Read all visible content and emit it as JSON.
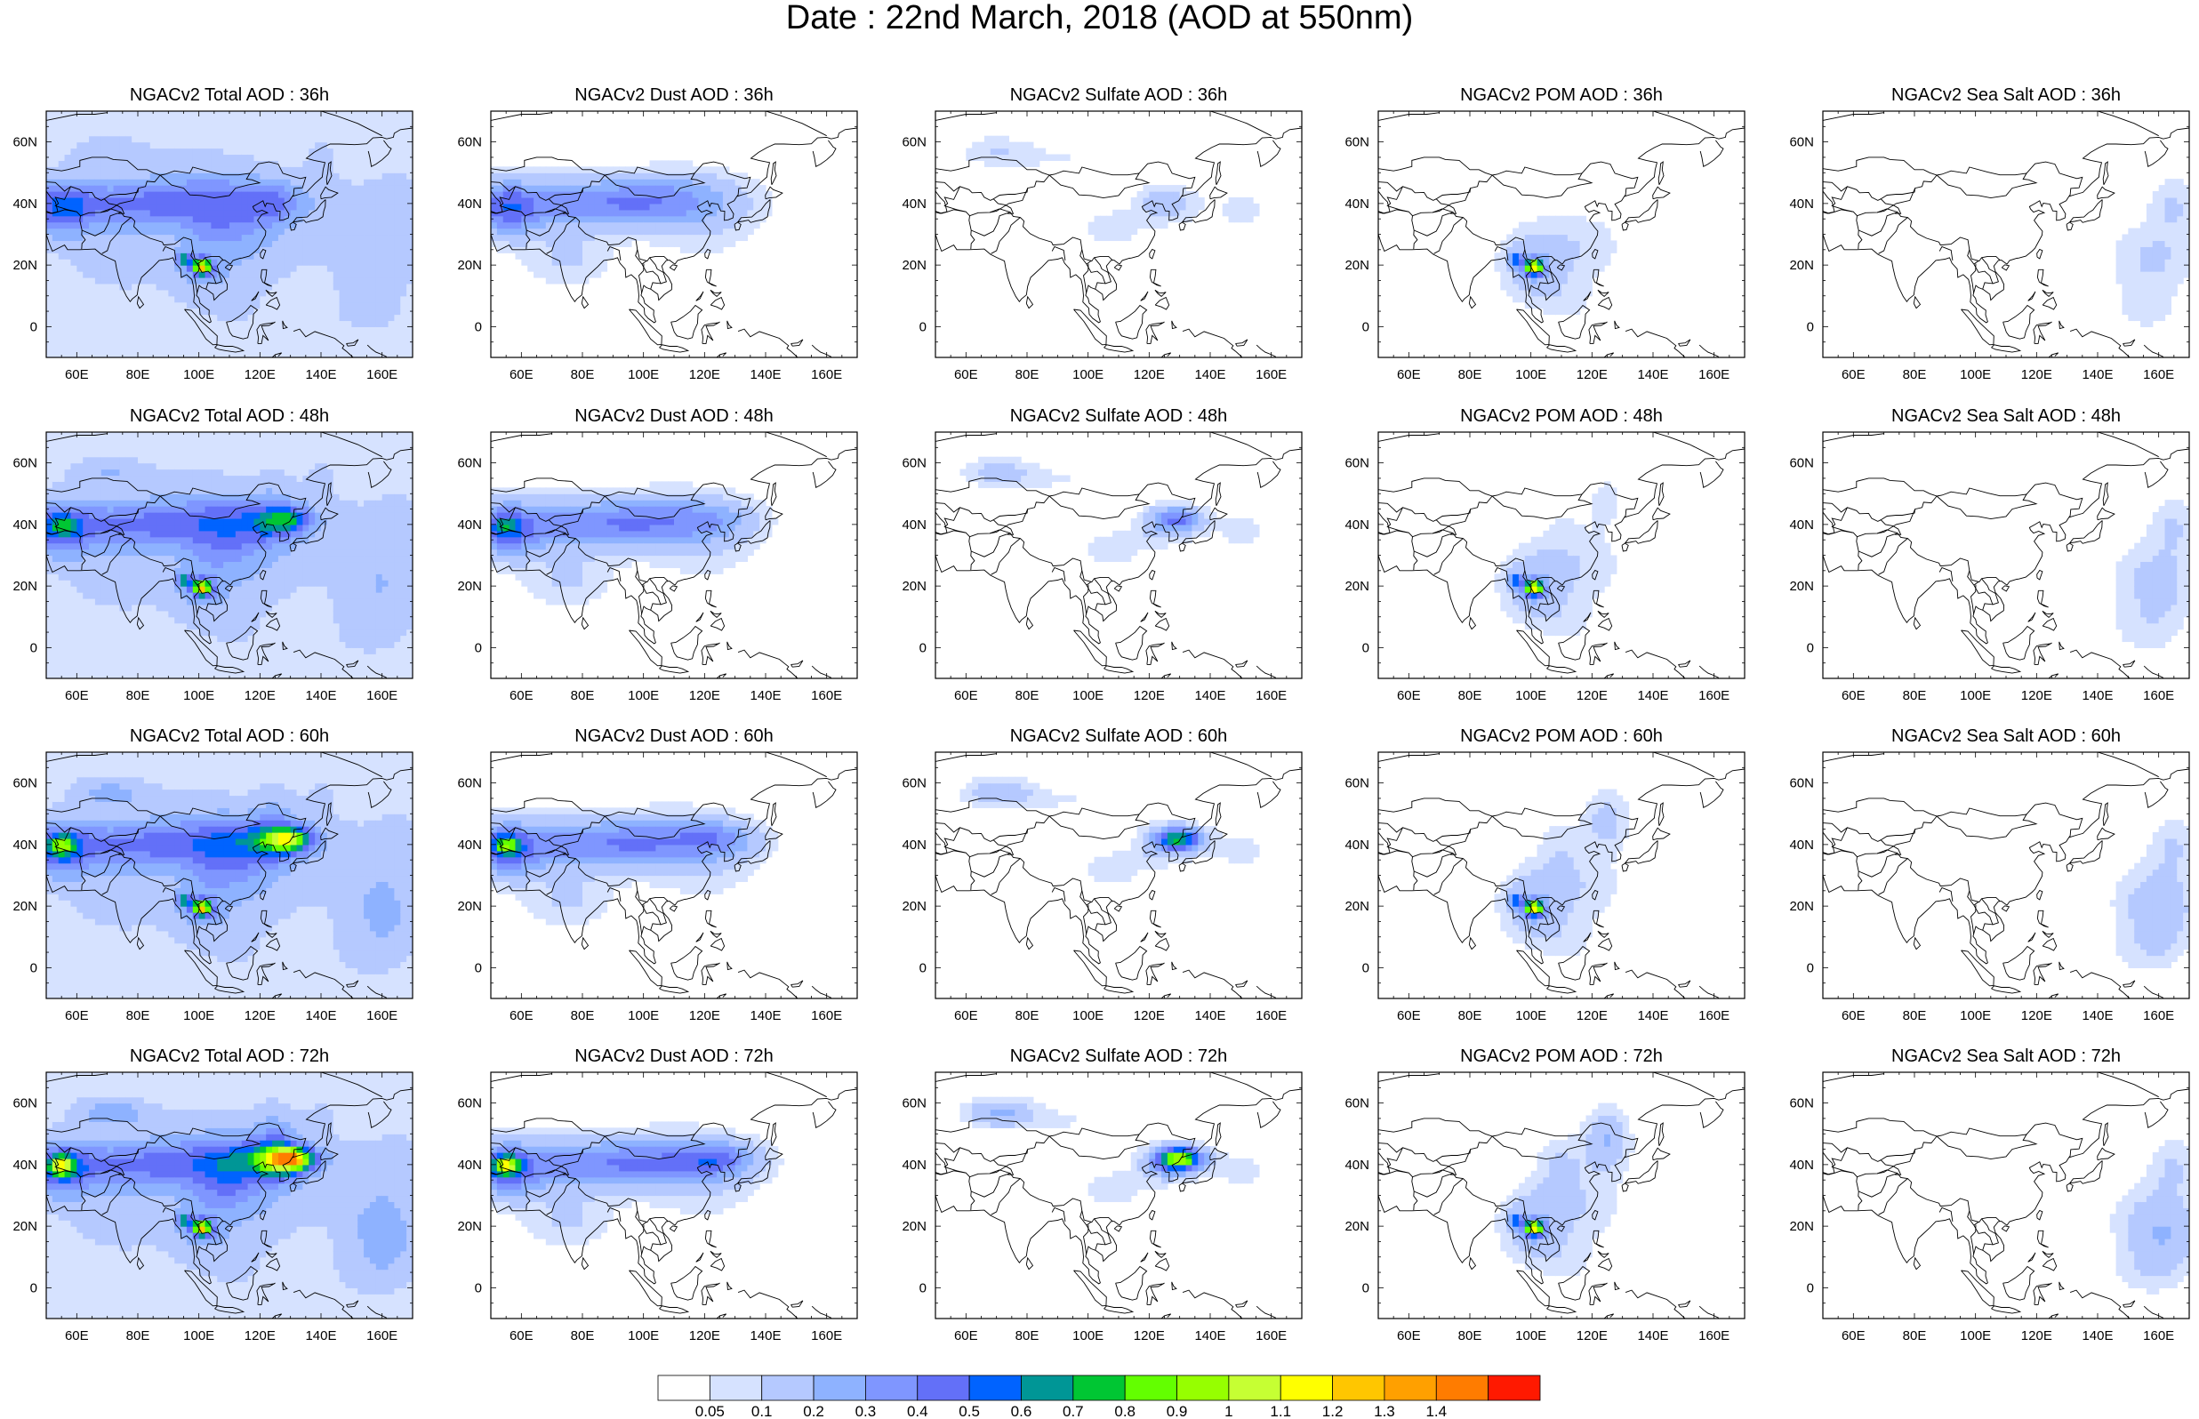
{
  "figure_title": "Date : 22nd March, 2018 (AOD at 550nm)",
  "map": {
    "extent": {
      "lon_min": 50,
      "lon_max": 170,
      "lat_min": -10,
      "lat_max": 70
    },
    "lon_ticks": [
      60,
      80,
      100,
      120,
      140,
      160
    ],
    "lon_tick_labels": [
      "60E",
      "80E",
      "100E",
      "120E",
      "140E",
      "160E"
    ],
    "lat_ticks": [
      60,
      40,
      20,
      0
    ],
    "lat_tick_labels": [
      "60N",
      "40N",
      "20N",
      "0"
    ]
  },
  "panels": [
    {
      "title": "NGACv2 Total AOD : 36h",
      "species": "total",
      "hour": 36
    },
    {
      "title": "NGACv2 Dust AOD : 36h",
      "species": "dust",
      "hour": 36
    },
    {
      "title": "NGACv2 Sulfate AOD : 36h",
      "species": "sulfate",
      "hour": 36
    },
    {
      "title": "NGACv2 POM AOD : 36h",
      "species": "pom",
      "hour": 36
    },
    {
      "title": "NGACv2 Sea Salt AOD : 36h",
      "species": "seasalt",
      "hour": 36
    },
    {
      "title": "NGACv2 Total AOD : 48h",
      "species": "total",
      "hour": 48
    },
    {
      "title": "NGACv2 Dust AOD : 48h",
      "species": "dust",
      "hour": 48
    },
    {
      "title": "NGACv2 Sulfate AOD : 48h",
      "species": "sulfate",
      "hour": 48
    },
    {
      "title": "NGACv2 POM AOD : 48h",
      "species": "pom",
      "hour": 48
    },
    {
      "title": "NGACv2 Sea Salt AOD : 48h",
      "species": "seasalt",
      "hour": 48
    },
    {
      "title": "NGACv2 Total AOD : 60h",
      "species": "total",
      "hour": 60
    },
    {
      "title": "NGACv2 Dust AOD : 60h",
      "species": "dust",
      "hour": 60
    },
    {
      "title": "NGACv2 Sulfate AOD : 60h",
      "species": "sulfate",
      "hour": 60
    },
    {
      "title": "NGACv2 POM AOD : 60h",
      "species": "pom",
      "hour": 60
    },
    {
      "title": "NGACv2 Sea Salt AOD : 60h",
      "species": "seasalt",
      "hour": 60
    },
    {
      "title": "NGACv2 Total AOD : 72h",
      "species": "total",
      "hour": 72
    },
    {
      "title": "NGACv2 Dust AOD : 72h",
      "species": "dust",
      "hour": 72
    },
    {
      "title": "NGACv2 Sulfate AOD : 72h",
      "species": "sulfate",
      "hour": 72
    },
    {
      "title": "NGACv2 POM AOD : 72h",
      "species": "pom",
      "hour": 72
    },
    {
      "title": "NGACv2 Sea Salt  AOD : 72h",
      "species": "seasalt",
      "hour": 72
    }
  ],
  "colorbar": {
    "colors": [
      "#ffffff",
      "#d6e2ff",
      "#b5c9ff",
      "#8eb2ff",
      "#7f96ff",
      "#6370f8",
      "#0063ff",
      "#009696",
      "#00c633",
      "#63ff00",
      "#96ff00",
      "#c6ff33",
      "#ffff00",
      "#ffc600",
      "#ffa000",
      "#ff7c00",
      "#ff1900"
    ],
    "labels": [
      "0.05",
      "0.1",
      "0.2",
      "0.3",
      "0.4",
      "0.5",
      "0.6",
      "0.7",
      "0.8",
      "0.9",
      "1",
      "1.1",
      "1.2",
      "1.3",
      "1.4"
    ]
  }
}
